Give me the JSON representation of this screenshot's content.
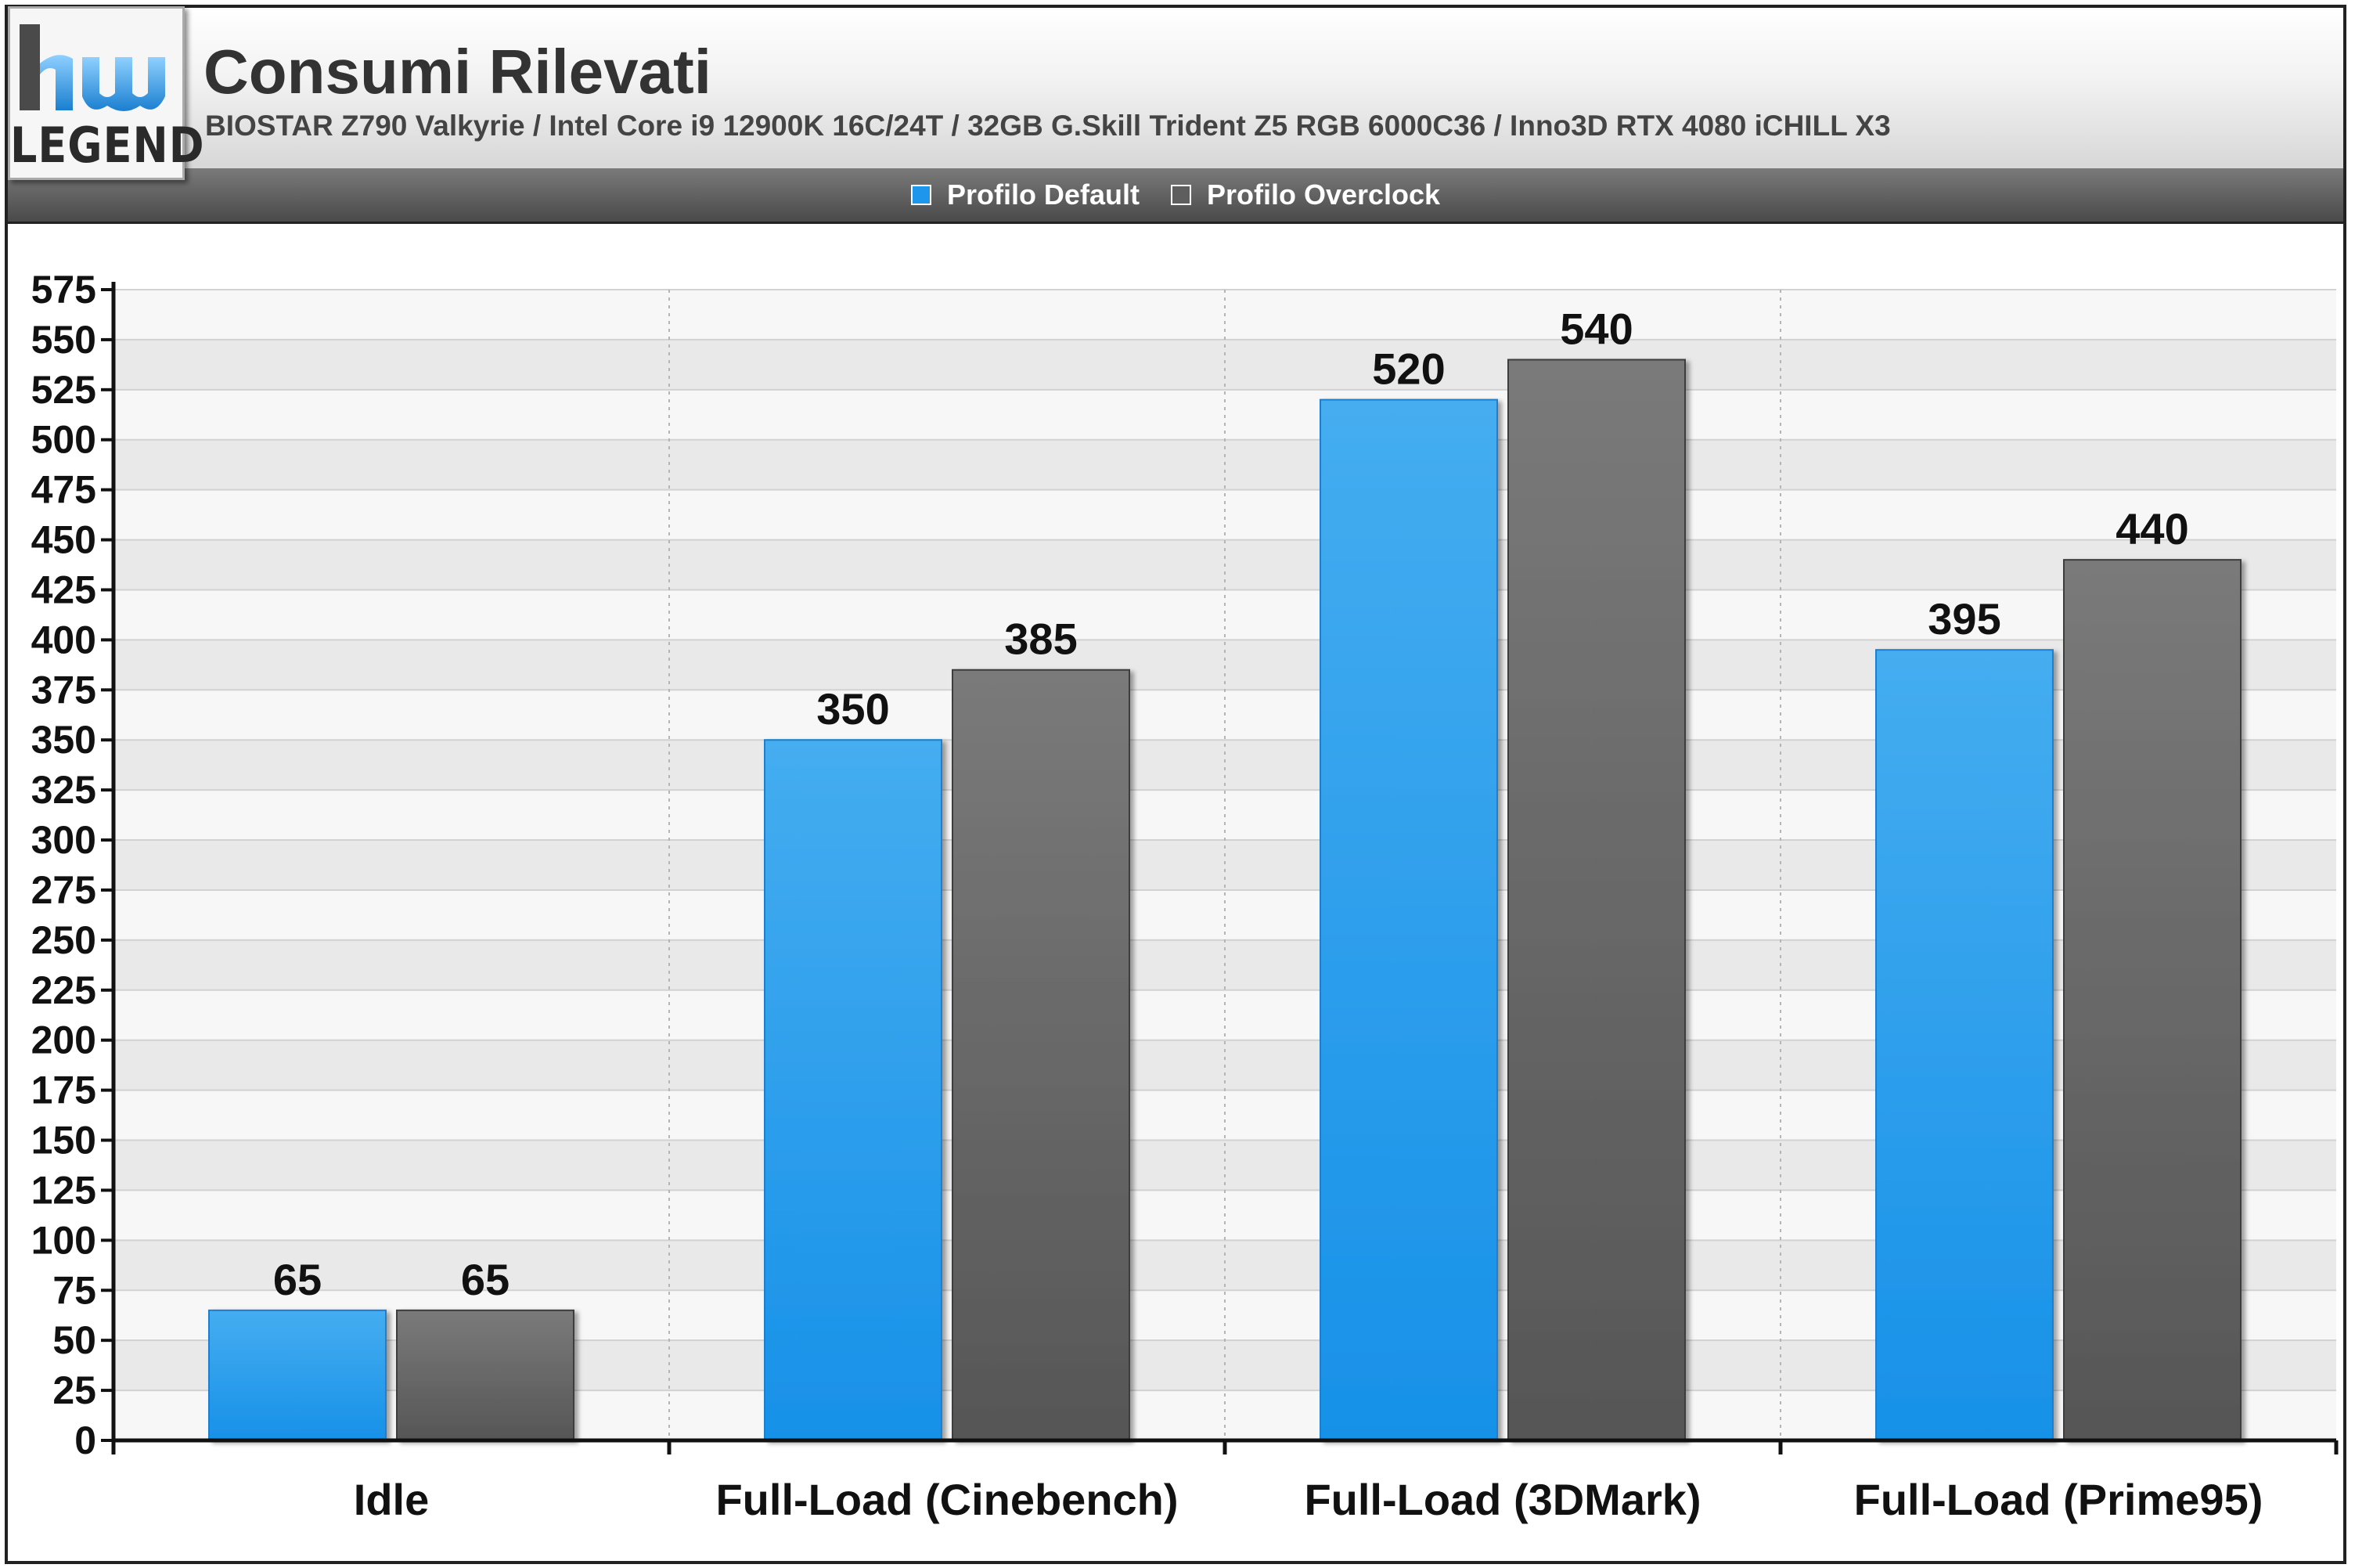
{
  "header": {
    "logo_text": "LEGEND",
    "title": "Consumi Rilevati",
    "subtitle": "BIOSTAR Z790 Valkyrie / Intel Core i9 12900K 16C/24T / 32GB G.Skill Trident Z5 RGB 6000C36 / Inno3D RTX 4080 iCHILL X3"
  },
  "legend": {
    "items": [
      {
        "label": "Profilo Default",
        "color": "#1e96ec"
      },
      {
        "label": "Profilo Overclock",
        "color": "#5e5e5e"
      }
    ]
  },
  "chart_data": {
    "type": "bar",
    "title": "Consumi Rilevati",
    "subtitle": "BIOSTAR Z790 Valkyrie / Intel Core i9 12900K 16C/24T / 32GB G.Skill Trident Z5 RGB 6000C36 / Inno3D RTX 4080 iCHILL X3",
    "categories": [
      "Idle",
      "Full-Load (Cinebench)",
      "Full-Load (3DMark)",
      "Full-Load (Prime95)"
    ],
    "series": [
      {
        "name": "Profilo Default",
        "values": [
          65,
          350,
          520,
          395
        ],
        "color": "#1e96ec"
      },
      {
        "name": "Profilo Overclock",
        "values": [
          65,
          385,
          540,
          440
        ],
        "color": "#5e5e5e"
      }
    ],
    "ylim": [
      0,
      575
    ],
    "ytick_step": 25,
    "grid": true,
    "legend_position": "top-center"
  }
}
